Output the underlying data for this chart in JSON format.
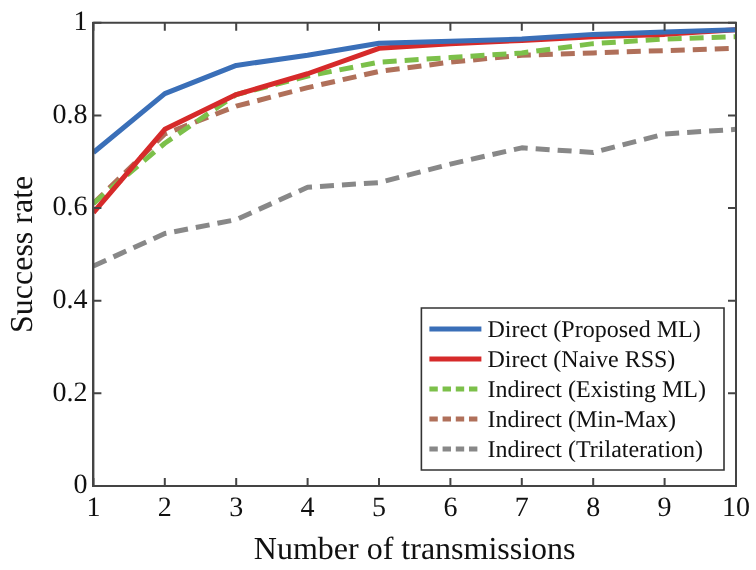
{
  "chart_data": {
    "type": "line",
    "xlabel": "Number of transmissions",
    "ylabel": "Success rate",
    "x": [
      1,
      2,
      3,
      4,
      5,
      6,
      7,
      8,
      9,
      10
    ],
    "xlim": [
      1,
      10
    ],
    "xticks": [
      1,
      2,
      3,
      4,
      5,
      6,
      7,
      8,
      9,
      10
    ],
    "ylim": [
      0,
      1
    ],
    "yticks": [
      0,
      0.2,
      0.4,
      0.6,
      0.8,
      1
    ],
    "grid": false,
    "legend": "bottom right",
    "marker": "none",
    "series": [
      {
        "name": "Direct (Proposed ML)",
        "color": "#3a6fb8",
        "line_style": "solid",
        "values": [
          0.72,
          0.847,
          0.908,
          0.93,
          0.956,
          0.96,
          0.965,
          0.975,
          0.98,
          0.985
        ]
      },
      {
        "name": "Direct (Naive RSS)",
        "color": "#d62a2a",
        "line_style": "solid",
        "values": [
          0.59,
          0.77,
          0.845,
          0.89,
          0.945,
          0.955,
          0.962,
          0.97,
          0.975,
          0.985
        ]
      },
      {
        "name": "Indirect (Existing ML)",
        "color": "#7cc04a",
        "line_style": "dashed",
        "values": [
          0.61,
          0.74,
          0.845,
          0.885,
          0.915,
          0.925,
          0.935,
          0.955,
          0.965,
          0.97
        ]
      },
      {
        "name": "Indirect (Min-Max)",
        "color": "#b0705a",
        "line_style": "dashed",
        "values": [
          0.61,
          0.76,
          0.82,
          0.86,
          0.895,
          0.915,
          0.93,
          0.935,
          0.94,
          0.945
        ]
      },
      {
        "name": "Indirect (Trilateration)",
        "color": "#888888",
        "line_style": "dashed",
        "values": [
          0.475,
          0.545,
          0.575,
          0.645,
          0.655,
          0.695,
          0.73,
          0.72,
          0.76,
          0.77
        ]
      }
    ]
  }
}
